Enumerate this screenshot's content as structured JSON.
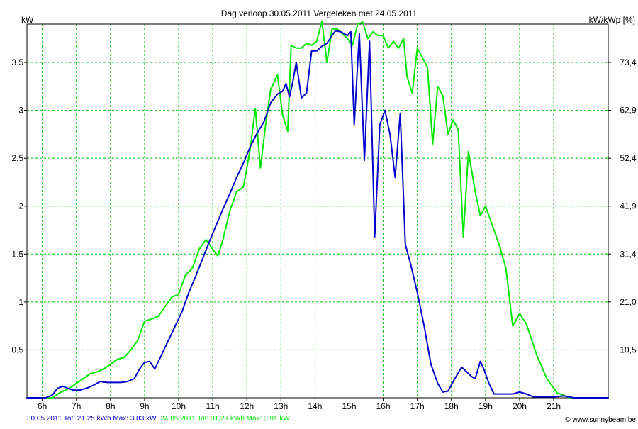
{
  "chart_data": {
    "type": "line",
    "title": "Dag  verloop 30.05.2011   Vergeleken met 24.05.2011",
    "ylabel_left": "kW",
    "ylabel_right": "kW/kWp [%]",
    "xlim": [
      5.55,
      22.6
    ],
    "ylim": [
      0,
      3.9
    ],
    "x_ticks": [
      6,
      7,
      8,
      9,
      10,
      11,
      12,
      13,
      14,
      15,
      16,
      17,
      18,
      19,
      20,
      21
    ],
    "x_tick_labels": [
      "6h",
      "7h",
      "8h",
      "9h",
      "10h",
      "11h",
      "12h",
      "13h",
      "14h",
      "15h",
      "16h",
      "17h",
      "18h",
      "19h",
      "20h",
      "21h"
    ],
    "y_ticks": [
      0.5,
      1,
      1.5,
      2,
      2.5,
      3,
      3.5
    ],
    "y_tick_labels": [
      "0.5",
      "1",
      "1.5",
      "2",
      "2.5",
      "3",
      "3.5"
    ],
    "y2_tick_labels": [
      "10,5",
      "21,0",
      "31,4",
      "41,9",
      "52,4",
      "62,9",
      "73,4"
    ],
    "grid": true,
    "series": [
      {
        "name": "30.05.2011",
        "color": "#0000cc",
        "points": [
          [
            5.55,
            0
          ],
          [
            6.1,
            0
          ],
          [
            6.3,
            0.03
          ],
          [
            6.45,
            0.1
          ],
          [
            6.6,
            0.12
          ],
          [
            6.75,
            0.1
          ],
          [
            6.9,
            0.08
          ],
          [
            7.1,
            0.08
          ],
          [
            7.3,
            0.1
          ],
          [
            7.5,
            0.13
          ],
          [
            7.7,
            0.17
          ],
          [
            7.9,
            0.16
          ],
          [
            8.1,
            0.16
          ],
          [
            8.3,
            0.16
          ],
          [
            8.5,
            0.17
          ],
          [
            8.7,
            0.2
          ],
          [
            8.85,
            0.3
          ],
          [
            9.0,
            0.37
          ],
          [
            9.15,
            0.38
          ],
          [
            9.3,
            0.3
          ],
          [
            9.5,
            0.45
          ],
          [
            9.7,
            0.6
          ],
          [
            9.9,
            0.75
          ],
          [
            10.1,
            0.9
          ],
          [
            10.3,
            1.1
          ],
          [
            10.5,
            1.27
          ],
          [
            10.7,
            1.45
          ],
          [
            10.9,
            1.63
          ],
          [
            11.1,
            1.8
          ],
          [
            11.3,
            1.97
          ],
          [
            11.5,
            2.13
          ],
          [
            11.7,
            2.3
          ],
          [
            11.9,
            2.45
          ],
          [
            12.1,
            2.62
          ],
          [
            12.3,
            2.76
          ],
          [
            12.5,
            2.88
          ],
          [
            12.7,
            3.08
          ],
          [
            12.9,
            3.17
          ],
          [
            13.05,
            3.2
          ],
          [
            13.15,
            3.28
          ],
          [
            13.25,
            3.14
          ],
          [
            13.35,
            3.3
          ],
          [
            13.45,
            3.5
          ],
          [
            13.6,
            3.13
          ],
          [
            13.75,
            3.18
          ],
          [
            13.9,
            3.62
          ],
          [
            14.05,
            3.62
          ],
          [
            14.2,
            3.67
          ],
          [
            14.35,
            3.7
          ],
          [
            14.5,
            3.78
          ],
          [
            14.6,
            3.83
          ],
          [
            14.75,
            3.82
          ],
          [
            14.85,
            3.8
          ],
          [
            14.95,
            3.78
          ],
          [
            15.05,
            3.82
          ],
          [
            15.15,
            2.85
          ],
          [
            15.3,
            3.8
          ],
          [
            15.45,
            2.48
          ],
          [
            15.6,
            3.72
          ],
          [
            15.75,
            1.68
          ],
          [
            15.9,
            2.85
          ],
          [
            16.05,
            3.0
          ],
          [
            16.2,
            2.75
          ],
          [
            16.35,
            2.3
          ],
          [
            16.5,
            2.97
          ],
          [
            16.65,
            1.6
          ],
          [
            16.8,
            1.4
          ],
          [
            17.0,
            1.1
          ],
          [
            17.2,
            0.75
          ],
          [
            17.4,
            0.35
          ],
          [
            17.6,
            0.15
          ],
          [
            17.75,
            0.06
          ],
          [
            17.9,
            0.07
          ],
          [
            18.1,
            0.2
          ],
          [
            18.3,
            0.32
          ],
          [
            18.45,
            0.27
          ],
          [
            18.6,
            0.22
          ],
          [
            18.7,
            0.2
          ],
          [
            18.85,
            0.38
          ],
          [
            18.95,
            0.3
          ],
          [
            19.1,
            0.15
          ],
          [
            19.25,
            0.04
          ],
          [
            19.5,
            0.04
          ],
          [
            19.8,
            0.04
          ],
          [
            20.0,
            0.06
          ],
          [
            20.2,
            0.04
          ],
          [
            20.4,
            0.01
          ],
          [
            20.6,
            0.01
          ],
          [
            21.0,
            0.01
          ],
          [
            21.3,
            0.02
          ],
          [
            21.6,
            0
          ],
          [
            22.6,
            0
          ]
        ]
      },
      {
        "name": "24.05.2011",
        "color": "#00e600",
        "points": [
          [
            5.55,
            0
          ],
          [
            6.3,
            0
          ],
          [
            6.5,
            0.05
          ],
          [
            6.8,
            0.1
          ],
          [
            7.0,
            0.15
          ],
          [
            7.2,
            0.2
          ],
          [
            7.4,
            0.25
          ],
          [
            7.6,
            0.27
          ],
          [
            7.8,
            0.3
          ],
          [
            8.0,
            0.35
          ],
          [
            8.2,
            0.4
          ],
          [
            8.4,
            0.42
          ],
          [
            8.6,
            0.5
          ],
          [
            8.8,
            0.6
          ],
          [
            9.0,
            0.8
          ],
          [
            9.2,
            0.82
          ],
          [
            9.4,
            0.85
          ],
          [
            9.6,
            0.95
          ],
          [
            9.8,
            1.05
          ],
          [
            10.0,
            1.08
          ],
          [
            10.2,
            1.28
          ],
          [
            10.4,
            1.35
          ],
          [
            10.6,
            1.55
          ],
          [
            10.8,
            1.65
          ],
          [
            11.0,
            1.55
          ],
          [
            11.15,
            1.48
          ],
          [
            11.3,
            1.65
          ],
          [
            11.5,
            1.95
          ],
          [
            11.7,
            2.15
          ],
          [
            11.9,
            2.2
          ],
          [
            12.1,
            2.6
          ],
          [
            12.25,
            3.02
          ],
          [
            12.4,
            2.4
          ],
          [
            12.55,
            2.85
          ],
          [
            12.7,
            3.22
          ],
          [
            12.9,
            3.37
          ],
          [
            13.05,
            2.95
          ],
          [
            13.2,
            2.78
          ],
          [
            13.3,
            3.68
          ],
          [
            13.45,
            3.65
          ],
          [
            13.6,
            3.65
          ],
          [
            13.75,
            3.7
          ],
          [
            13.9,
            3.68
          ],
          [
            14.05,
            3.72
          ],
          [
            14.2,
            3.93
          ],
          [
            14.35,
            3.5
          ],
          [
            14.5,
            3.85
          ],
          [
            14.65,
            3.85
          ],
          [
            14.8,
            3.8
          ],
          [
            14.95,
            3.75
          ],
          [
            15.1,
            3.68
          ],
          [
            15.25,
            3.9
          ],
          [
            15.4,
            3.92
          ],
          [
            15.55,
            3.75
          ],
          [
            15.7,
            3.82
          ],
          [
            15.85,
            3.78
          ],
          [
            16.0,
            3.78
          ],
          [
            16.15,
            3.65
          ],
          [
            16.3,
            3.72
          ],
          [
            16.45,
            3.65
          ],
          [
            16.6,
            3.75
          ],
          [
            16.7,
            3.35
          ],
          [
            16.85,
            3.18
          ],
          [
            17.0,
            3.65
          ],
          [
            17.15,
            3.55
          ],
          [
            17.3,
            3.45
          ],
          [
            17.45,
            2.65
          ],
          [
            17.6,
            3.25
          ],
          [
            17.75,
            3.15
          ],
          [
            17.9,
            2.75
          ],
          [
            18.05,
            2.9
          ],
          [
            18.2,
            2.8
          ],
          [
            18.35,
            1.68
          ],
          [
            18.5,
            2.57
          ],
          [
            18.7,
            2.15
          ],
          [
            18.85,
            1.9
          ],
          [
            19.0,
            2.0
          ],
          [
            19.2,
            1.8
          ],
          [
            19.4,
            1.6
          ],
          [
            19.6,
            1.35
          ],
          [
            19.8,
            0.75
          ],
          [
            20.0,
            0.88
          ],
          [
            20.2,
            0.77
          ],
          [
            20.5,
            0.45
          ],
          [
            20.8,
            0.2
          ],
          [
            21.1,
            0.05
          ],
          [
            21.5,
            0
          ],
          [
            22.6,
            0
          ]
        ]
      }
    ],
    "legend": [
      {
        "text": "30.05.2011 Tot: 21,25 kWh Max: 3,83 kW",
        "color": "#0000cc"
      },
      {
        "text": "24.05.2011 Tot: 31,29 kWh Max: 3,91 kW",
        "color": "#00e600"
      }
    ],
    "credit": "© www.sunnybeam.be"
  }
}
